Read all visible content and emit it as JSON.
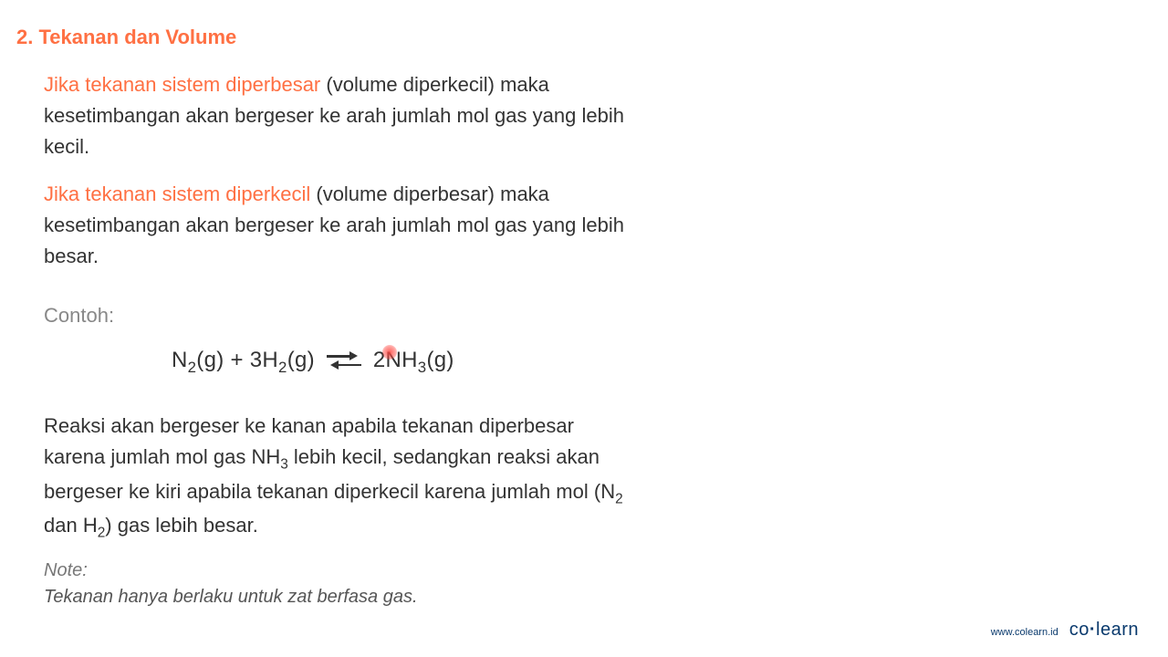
{
  "title": "2. Tekanan dan Volume",
  "para1_hl": "Jika tekanan sistem diperbesar",
  "para1_rest": " (volume diperkecil) maka kesetimbangan akan bergeser ke arah jumlah mol gas yang lebih kecil.",
  "para2_hl": "Jika tekanan sistem diperkecil",
  "para2_rest": " (volume diperbesar) maka kesetimbangan akan bergeser ke arah jumlah mol gas yang lebih besar.",
  "example_label": "Contoh:",
  "eq": {
    "lhs1": "N",
    "lhs1_sub": "2",
    "lhs1_state": "(g) + 3H",
    "lhs2_sub": "2",
    "lhs2_state": "(g)",
    "rhs_coef": "2",
    "rhs_n": "N",
    "rhs_sym": "H",
    "rhs_sub": "3",
    "rhs_state": "(g)"
  },
  "para3_a": "Reaksi akan bergeser ke kanan apabila tekanan diperbesar karena jumlah mol gas NH",
  "para3_sub1": "3",
  "para3_b": " lebih kecil, sedangkan reaksi akan bergeser ke kiri apabila tekanan diperkecil karena jumlah mol (N",
  "para3_sub2": "2",
  "para3_c": " dan H",
  "para3_sub3": "2",
  "para3_d": ") gas lebih besar.",
  "note_label": "Note:",
  "note_text": "Tekanan hanya berlaku untuk zat berfasa gas.",
  "footer_url": "www.colearn.id",
  "footer_logo_co": "co",
  "footer_logo_dot": "·",
  "footer_logo_learn": "learn",
  "colors": {
    "accent": "#ff7043",
    "text": "#333333",
    "muted": "#888888",
    "note": "#777777",
    "brand": "#0a3a6d",
    "pointer": "#ff4842",
    "background": "#ffffff"
  }
}
